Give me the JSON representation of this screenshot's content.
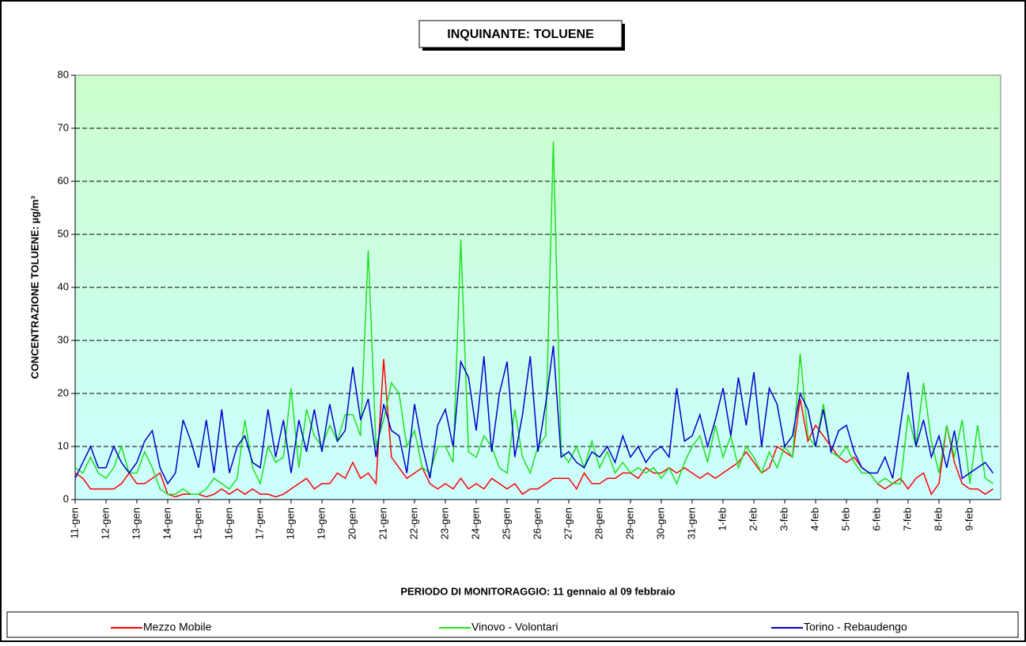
{
  "chart_data": {
    "type": "line",
    "title": "INQUINANTE: TOLUENE",
    "y_label": "CONCENTRAZIONE TOLUENE:  µg/m³",
    "x_label": "PERIODO DI MONITORAGGIO: 11 gennaio al 09 febbraio",
    "categories": [
      "11-gen",
      null,
      null,
      null,
      "12-gen",
      null,
      null,
      null,
      "13-gen",
      null,
      null,
      null,
      "14-gen",
      null,
      null,
      null,
      "15-gen",
      null,
      null,
      null,
      "16-gen",
      null,
      null,
      null,
      "17-gen",
      null,
      null,
      null,
      "18-gen",
      null,
      null,
      null,
      "19-gen",
      null,
      null,
      null,
      "20-gen",
      null,
      null,
      null,
      "21-gen",
      null,
      null,
      null,
      "22-gen",
      null,
      null,
      null,
      "23-gen",
      null,
      null,
      null,
      "24-gen",
      null,
      null,
      null,
      "25-gen",
      null,
      null,
      null,
      "26-gen",
      null,
      null,
      null,
      "27-gen",
      null,
      null,
      null,
      "28-gen",
      null,
      null,
      null,
      "29-gen",
      null,
      null,
      null,
      "30-gen",
      null,
      null,
      null,
      "31-gen",
      null,
      null,
      null,
      "1-feb",
      null,
      null,
      null,
      "2-feb",
      null,
      null,
      null,
      "3-feb",
      null,
      null,
      null,
      "4-feb",
      null,
      null,
      null,
      "5-feb",
      null,
      null,
      null,
      "6-feb",
      null,
      null,
      null,
      "7-feb",
      null,
      null,
      null,
      "8-feb",
      null,
      null,
      null,
      "9-feb",
      null,
      null,
      null
    ],
    "series": [
      {
        "name": "Mezzo Mobile",
        "color": "#ff0000",
        "values": [
          5,
          4,
          2,
          2,
          2,
          2,
          3,
          5,
          3,
          3,
          4,
          5,
          1,
          0.5,
          1,
          1,
          1,
          0.5,
          1,
          2,
          1,
          2,
          1,
          2,
          1,
          1,
          0.5,
          1,
          2,
          3,
          4,
          2,
          3,
          3,
          5,
          4,
          7,
          4,
          5,
          3,
          26.5,
          8,
          6,
          4,
          5,
          6,
          3,
          2,
          3,
          2,
          4,
          2,
          3,
          2,
          4,
          3,
          2,
          3,
          1,
          2,
          2,
          3,
          4,
          4,
          4,
          2,
          5,
          3,
          3,
          4,
          4,
          5,
          5,
          4,
          6,
          5,
          5,
          6,
          5,
          6,
          5,
          4,
          5,
          4,
          5,
          6,
          7,
          9,
          7,
          5,
          6,
          10,
          9,
          8,
          19,
          11,
          14,
          12,
          10,
          8,
          7,
          8,
          6,
          5,
          3,
          2,
          3,
          4,
          2,
          4,
          5,
          1,
          3,
          14,
          7,
          3,
          2,
          2,
          1,
          2
        ]
      },
      {
        "name": "Vinovo - Volontari",
        "color": "#22e022",
        "values": [
          6,
          5,
          8,
          5,
          4,
          6,
          10,
          5,
          5,
          9,
          6,
          2,
          1,
          1,
          2,
          1,
          1,
          2,
          4,
          3,
          2,
          4,
          15,
          6,
          3,
          10,
          7,
          8,
          21,
          6,
          17,
          12,
          10,
          14,
          11,
          16,
          16,
          12,
          47,
          10,
          15,
          22,
          20,
          10,
          13,
          6,
          5,
          10,
          10,
          7,
          49,
          9,
          8,
          12,
          10,
          6,
          5,
          17,
          8,
          5,
          10,
          12,
          67.5,
          9,
          7,
          10,
          6,
          11,
          6,
          9,
          5,
          7,
          5,
          6,
          5,
          6,
          4,
          6,
          3,
          7,
          10,
          12,
          7,
          14,
          8,
          12,
          6,
          10,
          8,
          5,
          9,
          6,
          10,
          8,
          27.5,
          12,
          10,
          18,
          9,
          8,
          10,
          7,
          5,
          5,
          3,
          4,
          3,
          3,
          16,
          10,
          22,
          11,
          5,
          14,
          8,
          15,
          3,
          14,
          4,
          3
        ]
      },
      {
        "name": "Torino - Rebaudengo",
        "color": "#0000cc",
        "values": [
          4,
          7,
          10,
          6,
          6,
          10,
          7,
          5,
          7,
          11,
          13,
          6,
          3,
          5,
          15,
          11,
          6,
          15,
          5,
          17,
          5,
          10,
          12,
          7,
          6,
          17,
          8,
          15,
          5,
          15,
          9,
          17,
          9,
          18,
          11,
          13,
          25,
          15,
          19,
          8,
          18,
          13,
          12,
          5,
          18,
          10,
          4,
          14,
          17,
          10,
          26,
          23,
          13,
          27,
          9,
          20,
          26,
          8,
          16,
          27,
          9,
          18,
          29,
          8,
          9,
          7,
          6,
          9,
          8,
          10,
          7,
          12,
          8,
          10,
          7,
          9,
          10,
          8,
          21,
          11,
          12,
          16,
          10,
          15,
          21,
          12,
          23,
          14,
          24,
          10,
          21,
          18,
          10,
          12,
          20,
          17,
          10,
          17,
          9,
          13,
          14,
          9,
          6,
          5,
          5,
          8,
          4,
          14,
          24,
          10,
          15,
          8,
          12,
          6,
          13,
          4,
          5,
          6,
          7,
          5
        ]
      }
    ],
    "ylim": [
      0,
      80
    ],
    "yticks": [
      0,
      10,
      20,
      30,
      40,
      50,
      60,
      70,
      80
    ],
    "grid": true
  }
}
